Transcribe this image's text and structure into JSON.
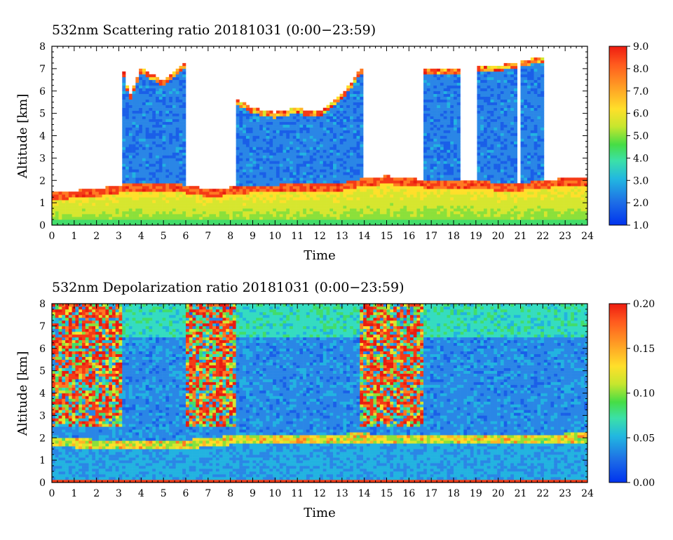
{
  "chart_data": [
    {
      "type": "heatmap",
      "title": "532nm Scattering ratio  20181031 (0:00−23:59)",
      "xlabel": "Time",
      "ylabel": "Altitude [km]",
      "xlim": [
        0,
        24
      ],
      "ylim": [
        0,
        8
      ],
      "x_ticks": [
        "0",
        "1",
        "2",
        "3",
        "4",
        "5",
        "6",
        "7",
        "8",
        "9",
        "10",
        "11",
        "12",
        "13",
        "14",
        "15",
        "16",
        "17",
        "18",
        "19",
        "20",
        "21",
        "22",
        "23",
        "24"
      ],
      "y_ticks": [
        "0",
        "1",
        "2",
        "3",
        "4",
        "5",
        "6",
        "7",
        "8"
      ],
      "colorbar": {
        "range": [
          1.0,
          9.0
        ],
        "tick_labels": [
          "1.0",
          "2.0",
          "3.0",
          "4.0",
          "5.0",
          "6.0",
          "7.0",
          "8.0",
          "9.0"
        ]
      },
      "features": {
        "boundary_layer_top_km": [
          [
            0,
            1.5
          ],
          [
            2,
            1.6
          ],
          [
            3,
            1.8
          ],
          [
            4,
            1.9
          ],
          [
            5,
            1.9
          ],
          [
            6,
            1.8
          ],
          [
            7,
            1.6
          ],
          [
            8,
            1.7
          ],
          [
            9,
            1.8
          ],
          [
            10,
            1.8
          ],
          [
            11,
            1.9
          ],
          [
            12,
            1.9
          ],
          [
            13,
            1.9
          ],
          [
            14,
            2.1
          ],
          [
            15,
            2.2
          ],
          [
            16,
            2.1
          ],
          [
            17,
            2.0
          ],
          [
            18,
            2.0
          ],
          [
            19,
            2.0
          ],
          [
            20,
            1.9
          ],
          [
            21,
            1.9
          ],
          [
            22,
            2.0
          ],
          [
            23,
            2.1
          ],
          [
            24,
            2.1
          ]
        ],
        "upper_cloud_intervals_h": [
          [
            3.1,
            6.0
          ],
          [
            8.2,
            13.9
          ],
          [
            16.6,
            18.3
          ],
          [
            19.0,
            20.8
          ],
          [
            21.0,
            22.0
          ]
        ],
        "upper_cloud_base_km": [
          [
            3.1,
            7.0
          ],
          [
            3.5,
            5.6
          ],
          [
            4.0,
            6.8
          ],
          [
            5.0,
            6.2
          ],
          [
            6.0,
            7.0
          ],
          [
            8.2,
            5.4
          ],
          [
            9.0,
            5.0
          ],
          [
            10.0,
            4.8
          ],
          [
            11.0,
            5.0
          ],
          [
            12.0,
            4.8
          ],
          [
            13.0,
            5.6
          ],
          [
            13.9,
            6.8
          ],
          [
            16.6,
            6.7
          ],
          [
            18.3,
            6.8
          ],
          [
            19.0,
            6.8
          ],
          [
            20.8,
            7.0
          ],
          [
            21.0,
            7.1
          ],
          [
            22.0,
            7.3
          ]
        ]
      }
    },
    {
      "type": "heatmap",
      "title": "532nm Depolarization ratio  20181031 (0:00−23:59)",
      "xlabel": "Time",
      "ylabel": "Altitude [km]",
      "xlim": [
        0,
        24
      ],
      "ylim": [
        0,
        8
      ],
      "x_ticks": [
        "0",
        "1",
        "2",
        "3",
        "4",
        "5",
        "6",
        "7",
        "8",
        "9",
        "10",
        "11",
        "12",
        "13",
        "14",
        "15",
        "16",
        "17",
        "18",
        "19",
        "20",
        "21",
        "22",
        "23",
        "24"
      ],
      "y_ticks": [
        "0",
        "1",
        "2",
        "3",
        "4",
        "5",
        "6",
        "7",
        "8"
      ],
      "colorbar": {
        "range": [
          0.0,
          0.2
        ],
        "tick_labels": [
          "0.00",
          "0.05",
          "0.10",
          "0.15",
          "0.20"
        ]
      },
      "features": {
        "noisy_upper_intervals_h": [
          [
            0,
            3.1
          ],
          [
            6.0,
            8.3
          ],
          [
            13.8,
            16.7
          ]
        ],
        "high_depol_layer_km": [
          [
            0,
            1.9
          ],
          [
            3,
            1.8
          ],
          [
            6,
            1.8
          ],
          [
            8,
            2.0
          ],
          [
            14,
            2.1
          ],
          [
            16,
            2.0
          ],
          [
            24,
            2.1
          ]
        ]
      }
    }
  ]
}
